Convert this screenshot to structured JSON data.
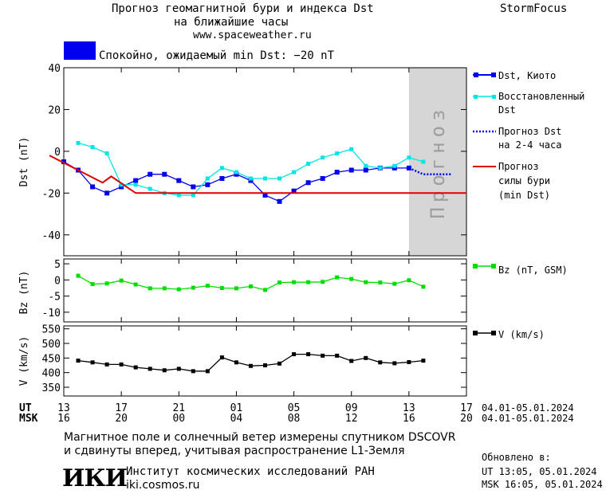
{
  "header": {
    "title_line1": "Прогноз геомагнитной бури и индекса Dst",
    "title_line2": "на ближайшие часы",
    "site": "www.spaceweather.ru",
    "brand": "StormFocus"
  },
  "status": {
    "text": "Спокойно, ожидаемый min Dst: −20 nT",
    "color": "#0000ee"
  },
  "forecast_band_label": "Прогноз",
  "legend": {
    "dst_kyoto": "Dst, Киото",
    "restored_line1": "Восстановленный",
    "restored_line2": "Dst",
    "forecast_dst_line1": "Прогноз Dst",
    "forecast_dst_line2": "на 2-4 часа",
    "storm_line1": "Прогноз",
    "storm_line2": "силы бури",
    "storm_line3": "(min Dst)",
    "bz": "Bz (nT, GSM)",
    "v": "V (km/s)"
  },
  "time_axis": {
    "ut_label": "UT",
    "msk_label": "MSK",
    "ut_ticks": [
      "13",
      "17",
      "21",
      "01",
      "05",
      "09",
      "13",
      "17"
    ],
    "msk_ticks": [
      "16",
      "20",
      "00",
      "04",
      "08",
      "12",
      "16",
      "20"
    ],
    "ut_range": "04.01-05.01.2024",
    "msk_range": "04.01-05.01.2024"
  },
  "footer": {
    "note_line1": "Магнитное поле и солнечный ветер измерены спутником DSCOVR",
    "note_line2": "и сдвинуты вперед, учитывая распространение L1-Земля",
    "logo": "ИКИ",
    "institute": "Институт космических исследований РАН",
    "institute_site": "iki.cosmos.ru",
    "updated_label": "Обновлено в:",
    "updated_ut": "UT  13:05, 05.01.2024",
    "updated_msk": "MSK 16:05, 05.01.2024"
  },
  "chart_data": [
    {
      "type": "line",
      "panel": "dst",
      "ylabel": "Dst (nT)",
      "ylim": [
        -50,
        40
      ],
      "yticks": [
        40,
        20,
        0,
        -20,
        -40
      ],
      "x_unit": "hours since 13 UT 04.01.2024",
      "xlim": [
        0,
        28
      ],
      "forecast_region": [
        24,
        28
      ],
      "series": [
        {
          "name": "Dst, Киото",
          "color": "#0000ee",
          "x": [
            0,
            1,
            2,
            3,
            4,
            5,
            6,
            7,
            8,
            9,
            10,
            11,
            12,
            13,
            14,
            15,
            16,
            17,
            18,
            19,
            20,
            21,
            22,
            23,
            24
          ],
          "values": [
            -5,
            -9,
            -17,
            -20,
            -17,
            -14,
            -11,
            -11,
            -14,
            -17,
            -16,
            -13,
            -11,
            -14,
            -21,
            -24,
            -19,
            -15,
            -13,
            -10,
            -9,
            -9,
            -8,
            -8,
            -8
          ]
        },
        {
          "name": "Восстановленный Dst",
          "color": "#00e5e5",
          "x": [
            1,
            2,
            3,
            4,
            5,
            6,
            7,
            8,
            9,
            10,
            11,
            12,
            13,
            14,
            15,
            16,
            17,
            18,
            19,
            20,
            21,
            22,
            23,
            24,
            25
          ],
          "values": [
            4,
            2,
            -1,
            -16,
            -16,
            -18,
            -20,
            -21,
            -21,
            -13,
            -8,
            -10,
            -13,
            -13,
            -13,
            -10,
            -6,
            -3,
            -1,
            1,
            -7,
            -8,
            -7,
            -3,
            -5
          ]
        },
        {
          "name": "Прогноз Dst на 2-4 часа",
          "color": "#0000ee",
          "style": "dotted",
          "x": [
            24,
            25,
            26,
            27
          ],
          "values": [
            -8,
            -11,
            -11,
            -11
          ]
        },
        {
          "name": "Прогноз силы бури (min Dst)",
          "color": "#dd0000",
          "x": [
            -1,
            2.7,
            3.3,
            5,
            28
          ],
          "values": [
            -2,
            -15,
            -12,
            -20,
            -20
          ]
        }
      ]
    },
    {
      "type": "line",
      "panel": "bz",
      "ylabel": "Bz (nT)",
      "ylim": [
        -13,
        6.5
      ],
      "yticks": [
        5,
        0,
        -5,
        -10
      ],
      "series": [
        {
          "name": "Bz (nT, GSM)",
          "color": "#00dd00",
          "x": [
            1,
            2,
            3,
            4,
            5,
            6,
            7,
            8,
            9,
            10,
            11,
            12,
            13,
            14,
            15,
            16,
            17,
            18,
            19,
            20,
            21,
            22,
            23,
            24,
            25
          ],
          "values": [
            1.3,
            -1.3,
            -1.1,
            -0.2,
            -1.4,
            -2.6,
            -2.6,
            -2.9,
            -2.4,
            -1.8,
            -2.5,
            -2.6,
            -2.0,
            -3.1,
            -0.8,
            -0.7,
            -0.7,
            -0.6,
            0.8,
            0.3,
            -0.7,
            -0.8,
            -1.2,
            -0.1,
            -2.1
          ]
        }
      ]
    },
    {
      "type": "line",
      "panel": "v",
      "ylabel": "V (km/s)",
      "ylim": [
        320,
        560
      ],
      "yticks": [
        550,
        500,
        450,
        400,
        350
      ],
      "series": [
        {
          "name": "V (km/s)",
          "color": "#000000",
          "x": [
            1,
            2,
            3,
            4,
            5,
            6,
            7,
            8,
            9,
            10,
            11,
            12,
            13,
            14,
            15,
            16,
            17,
            18,
            19,
            20,
            21,
            22,
            23,
            24,
            25
          ],
          "values": [
            441,
            435,
            428,
            428,
            418,
            413,
            408,
            413,
            405,
            405,
            452,
            435,
            423,
            425,
            431,
            463,
            463,
            458,
            458,
            440,
            450,
            435,
            432,
            436,
            441
          ]
        }
      ]
    }
  ]
}
